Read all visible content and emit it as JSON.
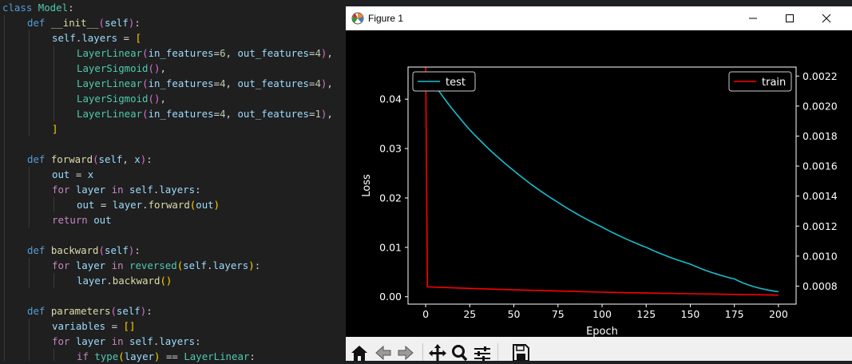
{
  "code_lines": [
    {
      "indent": 0,
      "tokens": [
        {
          "t": "class ",
          "c": "kw"
        },
        {
          "t": "Model",
          "c": "cls"
        },
        {
          "t": ":",
          "c": ""
        }
      ]
    },
    {
      "indent": 1,
      "tokens": [
        {
          "t": "def ",
          "c": "kw"
        },
        {
          "t": "__init__",
          "c": "fn"
        },
        {
          "t": "(",
          "c": "br2"
        },
        {
          "t": "self",
          "c": "var"
        },
        {
          "t": ")",
          "c": "br2"
        },
        {
          "t": ":",
          "c": ""
        }
      ]
    },
    {
      "indent": 2,
      "tokens": [
        {
          "t": "self",
          "c": "var"
        },
        {
          "t": ".",
          "c": ""
        },
        {
          "t": "layers",
          "c": "var"
        },
        {
          "t": " = ",
          "c": ""
        },
        {
          "t": "[",
          "c": "br1"
        }
      ]
    },
    {
      "indent": 3,
      "tokens": [
        {
          "t": "LayerLinear",
          "c": "cls"
        },
        {
          "t": "(",
          "c": "br2"
        },
        {
          "t": "in_features",
          "c": "var"
        },
        {
          "t": "=",
          "c": ""
        },
        {
          "t": "6",
          "c": "num"
        },
        {
          "t": ", ",
          "c": ""
        },
        {
          "t": "out_features",
          "c": "var"
        },
        {
          "t": "=",
          "c": ""
        },
        {
          "t": "4",
          "c": "num"
        },
        {
          "t": ")",
          "c": "br2"
        },
        {
          "t": ",",
          "c": ""
        }
      ]
    },
    {
      "indent": 3,
      "tokens": [
        {
          "t": "LayerSigmoid",
          "c": "cls"
        },
        {
          "t": "()",
          "c": "br2"
        },
        {
          "t": ",",
          "c": ""
        }
      ]
    },
    {
      "indent": 3,
      "tokens": [
        {
          "t": "LayerLinear",
          "c": "cls"
        },
        {
          "t": "(",
          "c": "br2"
        },
        {
          "t": "in_features",
          "c": "var"
        },
        {
          "t": "=",
          "c": ""
        },
        {
          "t": "4",
          "c": "num"
        },
        {
          "t": ", ",
          "c": ""
        },
        {
          "t": "out_features",
          "c": "var"
        },
        {
          "t": "=",
          "c": ""
        },
        {
          "t": "4",
          "c": "num"
        },
        {
          "t": ")",
          "c": "br2"
        },
        {
          "t": ",",
          "c": ""
        }
      ]
    },
    {
      "indent": 3,
      "tokens": [
        {
          "t": "LayerSigmoid",
          "c": "cls"
        },
        {
          "t": "()",
          "c": "br2"
        },
        {
          "t": ",",
          "c": ""
        }
      ]
    },
    {
      "indent": 3,
      "tokens": [
        {
          "t": "LayerLinear",
          "c": "cls"
        },
        {
          "t": "(",
          "c": "br2"
        },
        {
          "t": "in_features",
          "c": "var"
        },
        {
          "t": "=",
          "c": ""
        },
        {
          "t": "4",
          "c": "num"
        },
        {
          "t": ", ",
          "c": ""
        },
        {
          "t": "out_features",
          "c": "var"
        },
        {
          "t": "=",
          "c": ""
        },
        {
          "t": "1",
          "c": "num"
        },
        {
          "t": ")",
          "c": "br2"
        },
        {
          "t": ",",
          "c": ""
        }
      ]
    },
    {
      "indent": 2,
      "tokens": [
        {
          "t": "]",
          "c": "br1"
        }
      ]
    },
    {
      "indent": 0,
      "tokens": []
    },
    {
      "indent": 1,
      "tokens": [
        {
          "t": "def ",
          "c": "kw"
        },
        {
          "t": "forward",
          "c": "fn"
        },
        {
          "t": "(",
          "c": "br2"
        },
        {
          "t": "self",
          "c": "var"
        },
        {
          "t": ", ",
          "c": ""
        },
        {
          "t": "x",
          "c": "var"
        },
        {
          "t": ")",
          "c": "br2"
        },
        {
          "t": ":",
          "c": ""
        }
      ]
    },
    {
      "indent": 2,
      "tokens": [
        {
          "t": "out",
          "c": "var"
        },
        {
          "t": " = ",
          "c": ""
        },
        {
          "t": "x",
          "c": "var"
        }
      ]
    },
    {
      "indent": 2,
      "tokens": [
        {
          "t": "for ",
          "c": "ctrl"
        },
        {
          "t": "layer",
          "c": "var"
        },
        {
          "t": " in ",
          "c": "ctrl"
        },
        {
          "t": "self",
          "c": "var"
        },
        {
          "t": ".",
          "c": ""
        },
        {
          "t": "layers",
          "c": "var"
        },
        {
          "t": ":",
          "c": ""
        }
      ]
    },
    {
      "indent": 3,
      "tokens": [
        {
          "t": "out",
          "c": "var"
        },
        {
          "t": " = ",
          "c": ""
        },
        {
          "t": "layer",
          "c": "var"
        },
        {
          "t": ".",
          "c": ""
        },
        {
          "t": "forward",
          "c": "fn"
        },
        {
          "t": "(",
          "c": "br1"
        },
        {
          "t": "out",
          "c": "var"
        },
        {
          "t": ")",
          "c": "br1"
        }
      ]
    },
    {
      "indent": 2,
      "tokens": [
        {
          "t": "return ",
          "c": "ctrl"
        },
        {
          "t": "out",
          "c": "var"
        }
      ]
    },
    {
      "indent": 0,
      "tokens": []
    },
    {
      "indent": 1,
      "tokens": [
        {
          "t": "def ",
          "c": "kw"
        },
        {
          "t": "backward",
          "c": "fn"
        },
        {
          "t": "(",
          "c": "br2"
        },
        {
          "t": "self",
          "c": "var"
        },
        {
          "t": ")",
          "c": "br2"
        },
        {
          "t": ":",
          "c": ""
        }
      ]
    },
    {
      "indent": 2,
      "tokens": [
        {
          "t": "for ",
          "c": "ctrl"
        },
        {
          "t": "layer",
          "c": "var"
        },
        {
          "t": " in ",
          "c": "ctrl"
        },
        {
          "t": "reversed",
          "c": "cls"
        },
        {
          "t": "(",
          "c": "br1"
        },
        {
          "t": "self",
          "c": "var"
        },
        {
          "t": ".",
          "c": ""
        },
        {
          "t": "layers",
          "c": "var"
        },
        {
          "t": ")",
          "c": "br1"
        },
        {
          "t": ":",
          "c": ""
        }
      ]
    },
    {
      "indent": 3,
      "tokens": [
        {
          "t": "layer",
          "c": "var"
        },
        {
          "t": ".",
          "c": ""
        },
        {
          "t": "backward",
          "c": "fn"
        },
        {
          "t": "()",
          "c": "br1"
        }
      ]
    },
    {
      "indent": 0,
      "tokens": []
    },
    {
      "indent": 1,
      "tokens": [
        {
          "t": "def ",
          "c": "kw"
        },
        {
          "t": "parameters",
          "c": "fn"
        },
        {
          "t": "(",
          "c": "br2"
        },
        {
          "t": "self",
          "c": "var"
        },
        {
          "t": ")",
          "c": "br2"
        },
        {
          "t": ":",
          "c": ""
        }
      ]
    },
    {
      "indent": 2,
      "tokens": [
        {
          "t": "variables",
          "c": "var"
        },
        {
          "t": " = ",
          "c": ""
        },
        {
          "t": "[]",
          "c": "br1"
        }
      ]
    },
    {
      "indent": 2,
      "tokens": [
        {
          "t": "for ",
          "c": "ctrl"
        },
        {
          "t": "layer",
          "c": "var"
        },
        {
          "t": " in ",
          "c": "ctrl"
        },
        {
          "t": "self",
          "c": "var"
        },
        {
          "t": ".",
          "c": ""
        },
        {
          "t": "layers",
          "c": "var"
        },
        {
          "t": ":",
          "c": ""
        }
      ]
    },
    {
      "indent": 3,
      "tokens": [
        {
          "t": "if ",
          "c": "ctrl"
        },
        {
          "t": "type",
          "c": "cls"
        },
        {
          "t": "(",
          "c": "br1"
        },
        {
          "t": "layer",
          "c": "var"
        },
        {
          "t": ")",
          "c": "br1"
        },
        {
          "t": " == ",
          "c": ""
        },
        {
          "t": "LayerLinear",
          "c": "cls"
        },
        {
          "t": ":",
          "c": ""
        }
      ]
    }
  ],
  "window": {
    "title": "Figure 1",
    "controls": [
      "minimize-icon",
      "maximize-icon",
      "close-icon"
    ]
  },
  "toolbar": {
    "tools": [
      "home-icon",
      "back-icon",
      "forward-icon",
      "pan-icon",
      "zoom-icon",
      "configure-subplots-icon",
      "save-icon"
    ]
  },
  "chart_data": {
    "type": "line",
    "xlabel": "Epoch",
    "ylabel": "Loss",
    "xlim": [
      -10,
      210
    ],
    "xticks": [
      0,
      25,
      50,
      75,
      100,
      125,
      150,
      175,
      200
    ],
    "left_axis": {
      "ylim": [
        -0.0015,
        0.0465
      ],
      "ticks": [
        "0.00",
        "0.01",
        "0.02",
        "0.03",
        "0.04"
      ],
      "tick_values": [
        0,
        0.01,
        0.02,
        0.03,
        0.04
      ]
    },
    "right_axis": {
      "ylim": [
        0.00068,
        0.00226
      ],
      "ticks": [
        "0.0008",
        "0.0010",
        "0.0012",
        "0.0014",
        "0.0016",
        "0.0018",
        "0.0020",
        "0.0022"
      ],
      "tick_values": [
        0.0008,
        0.001,
        0.0012,
        0.0014,
        0.0016,
        0.0018,
        0.002,
        0.0022
      ]
    },
    "series": [
      {
        "name": "test",
        "axis": "left",
        "color": "#17becf",
        "x": [
          0,
          25,
          50,
          75,
          100,
          125,
          150,
          175,
          200
        ],
        "values": [
          0.0455,
          0.0338,
          0.0255,
          0.0191,
          0.0141,
          0.01,
          0.0066,
          0.0036,
          0.001
        ]
      },
      {
        "name": "train",
        "axis": "right",
        "color": "#ff0000",
        "x": [
          0,
          1,
          25,
          50,
          75,
          100,
          125,
          150,
          175,
          200
        ],
        "values": [
          0.00226,
          0.000795,
          0.000785,
          0.000775,
          0.000767,
          0.00076,
          0.000754,
          0.000749,
          0.000745,
          0.00074
        ]
      }
    ],
    "legends": [
      {
        "position": "upper-left",
        "entries": [
          "test"
        ]
      },
      {
        "position": "upper-right",
        "entries": [
          "train"
        ]
      }
    ],
    "background": "#000000",
    "foreground": "#ffffff",
    "grid": false
  }
}
